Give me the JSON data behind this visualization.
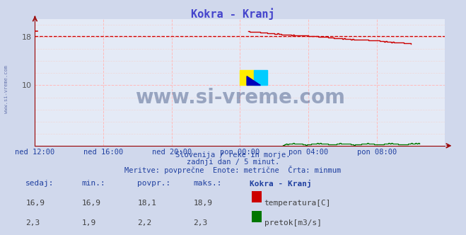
{
  "title": "Kokra - Kranj",
  "title_color": "#4444cc",
  "bg_color": "#d0d8ec",
  "plot_bg_color": "#e4eaf6",
  "temp_color": "#cc0000",
  "flow_color": "#007700",
  "avg_line_color": "#cc0000",
  "avg_temp": 18.1,
  "ylim": [
    0,
    21.0
  ],
  "xlim": [
    0,
    24
  ],
  "x_tick_labels": [
    "ned 12:00",
    "ned 16:00",
    "ned 20:00",
    "pon 00:00",
    "pon 04:00",
    "pon 08:00"
  ],
  "x_tick_positions": [
    0,
    4,
    8,
    12,
    16,
    20
  ],
  "y_tick_labels": [
    "10",
    "18"
  ],
  "y_tick_positions": [
    10,
    18
  ],
  "watermark": "www.si-vreme.com",
  "watermark_color": "#3a5080",
  "side_text": "www.si-vreme.com",
  "sub1": "Slovenija / reke in morje.",
  "sub2": "zadnji dan / 5 minut.",
  "sub3": "Meritve: povprečne  Enote: metrične  Črta: minmum",
  "sub_color": "#2040a0",
  "tick_label_color": "#2040a0",
  "table_headers": [
    "sedaj:",
    "min.:",
    "povpr.:",
    "maks.:",
    "Kokra - Kranj"
  ],
  "table_temp": [
    "16,9",
    "16,9",
    "18,1",
    "18,9"
  ],
  "table_flow": [
    "2,3",
    "1,9",
    "2,2",
    "2,3"
  ],
  "label_temp": "temperatura[C]",
  "label_flow": "pretok[m3/s]",
  "spine_color": "#990000",
  "grid_color": "#ffbbbb",
  "fine_grid_color": "#f0d8d8"
}
